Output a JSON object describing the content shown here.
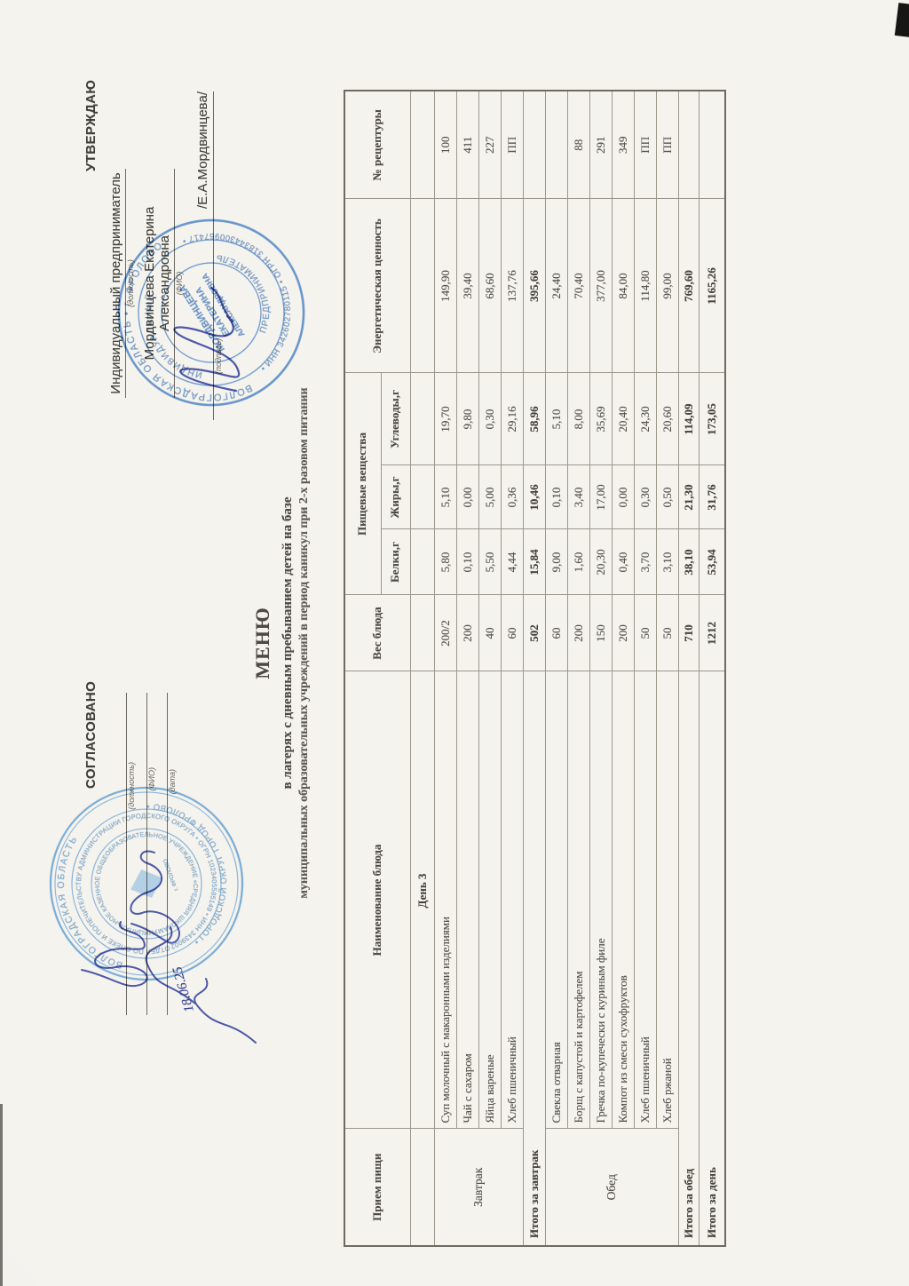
{
  "doc": {
    "approve": {
      "title": "УТВЕРЖДАЮ",
      "role": "Индивидуальный предприниматель",
      "role_hint": "(должность)",
      "name": "Мордвинцева Екатерина Александровна",
      "name_hint": "(ФИО)",
      "sign_hint": "(подпись)",
      "sign_name": "/Е.А.Мордвинцева/"
    },
    "agree": {
      "title": "СОГЛАСОВАНО",
      "hints": [
        "(должность)",
        "(ФИО)",
        "(дата)"
      ],
      "handwritten_date": "18.06.25"
    },
    "title": {
      "main": "МЕНЮ",
      "line2": "в лагерях с дневным пребыванием детей на базе",
      "line3": "муниципальных образовательных учреждений в период каникул при 2-х разовом питании"
    },
    "table": {
      "headers": {
        "meal": "Прием пищи",
        "dish": "Наименование блюда",
        "weight": "Вес блюда",
        "nutrients": "Пищевые вещества",
        "protein": "Белки,г",
        "fat": "Жиры,г",
        "carbs": "Углеводы,г",
        "energy": "Энергетическая ценность",
        "recipe": "№ рецептуры"
      },
      "rows": [
        {
          "type": "day",
          "name": "День 3"
        },
        {
          "type": "dish",
          "group": "Завтрак",
          "group_span": 4,
          "name": "Суп молочный с макаронными изделиями",
          "weight": "200/2",
          "protein": "5,80",
          "fat": "5,10",
          "carbs": "19,70",
          "energy": "149,90",
          "recipe": "100"
        },
        {
          "type": "dish",
          "name": "Чай с сахаром",
          "weight": "200",
          "protein": "0,10",
          "fat": "0,00",
          "carbs": "9,80",
          "energy": "39,40",
          "recipe": "411"
        },
        {
          "type": "dish",
          "name": "Яйца вареные",
          "weight": "40",
          "protein": "5,50",
          "fat": "5,00",
          "carbs": "0,30",
          "energy": "68,60",
          "recipe": "227"
        },
        {
          "type": "dish",
          "name": "Хлеб пшеничный",
          "weight": "60",
          "protein": "4,44",
          "fat": "0,36",
          "carbs": "29,16",
          "energy": "137,76",
          "recipe": "ПП"
        },
        {
          "type": "total",
          "name": "Итого за завтрак",
          "weight": "502",
          "protein": "15,84",
          "fat": "10,46",
          "carbs": "58,96",
          "energy": "395,66",
          "recipe": ""
        },
        {
          "type": "dish",
          "group": "Обед",
          "group_span": 6,
          "name": "Свекла отварная",
          "weight": "60",
          "protein": "9,00",
          "fat": "0,10",
          "carbs": "5,10",
          "energy": "24,40",
          "recipe": ""
        },
        {
          "type": "dish",
          "name": "Борщ с капустой и картофелем",
          "weight": "200",
          "protein": "1,60",
          "fat": "3,40",
          "carbs": "8,00",
          "energy": "70,40",
          "recipe": "88"
        },
        {
          "type": "dish",
          "name": "Гречка по-купечески с куриным филе",
          "weight": "150",
          "protein": "20,30",
          "fat": "17,00",
          "carbs": "35,69",
          "energy": "377,00",
          "recipe": "291"
        },
        {
          "type": "dish",
          "name": "Компот из смеси сухофруктов",
          "weight": "200",
          "protein": "0,40",
          "fat": "0,00",
          "carbs": "20,40",
          "energy": "84,00",
          "recipe": "349"
        },
        {
          "type": "dish",
          "name": "Хлеб пшеничный",
          "weight": "50",
          "protein": "3,70",
          "fat": "0,30",
          "carbs": "24,30",
          "energy": "114,80",
          "recipe": "ПП"
        },
        {
          "type": "dish",
          "name": "Хлеб ржаной",
          "weight": "50",
          "protein": "3,10",
          "fat": "0,50",
          "carbs": "20,60",
          "energy": "99,00",
          "recipe": "ПП"
        },
        {
          "type": "total",
          "name": "Итого за обед",
          "weight": "710",
          "protein": "38,10",
          "fat": "21,30",
          "carbs": "114,09",
          "energy": "769,60",
          "recipe": ""
        },
        {
          "type": "total",
          "name": "Итого за день",
          "weight": "1212",
          "protein": "53,94",
          "fat": "31,76",
          "carbs": "173,05",
          "energy": "1165,26",
          "recipe": ""
        }
      ]
    },
    "stamps": {
      "ip": {
        "ring_top": "ВОЛГОГРАДСКАЯ ОБЛАСТЬ • г. ФРОЛОВО",
        "ring_bottom": "• ИНН 342602780115 • ОГРН 318344300967417 •",
        "ring2_top": "ИНДИВИДУАЛЬНЫЙ",
        "ring2_bottom": "ПРЕДПРИНИМАТЕЛЬ",
        "center": [
          "МОРДВИНЦЕВА",
          "ЕКАТЕРИНА",
          "АЛЕКСАНДРОВНА"
        ]
      },
      "school": {
        "ring1_top": "ВОЛГОГРАДСКАЯ ОБЛАСТЬ",
        "ring1_bottom": "• ГОРОДСКОЙ ОКРУГ ГОРОД ФРОЛОВО •",
        "ring2": "ОТДЕЛ ПО ОПЕКЕ И ПОПЕЧИТЕЛЬСТВУ АДМИНИСТРАЦИИ ГОРОДСКОГО ОКРУГА • ОГРН 1023405585149 • ИНН 3439002779 •",
        "ring3": "МУНИЦИПАЛЬНОЕ КАЗЕННОЕ ОБЩЕОБРАЗОВАТЕЛЬНОЕ УЧРЕЖДЕНИЕ «СРЕДНЯЯ ШКОЛА № 4 ИМЕНИ Ю.А.ГАГАРИНА» •",
        "center_small": "г. ФРОЛОВО"
      },
      "accent_blue": "#4f85c5",
      "school_blue": "#5e9cd0",
      "ink_blue": "#3b479f"
    }
  }
}
